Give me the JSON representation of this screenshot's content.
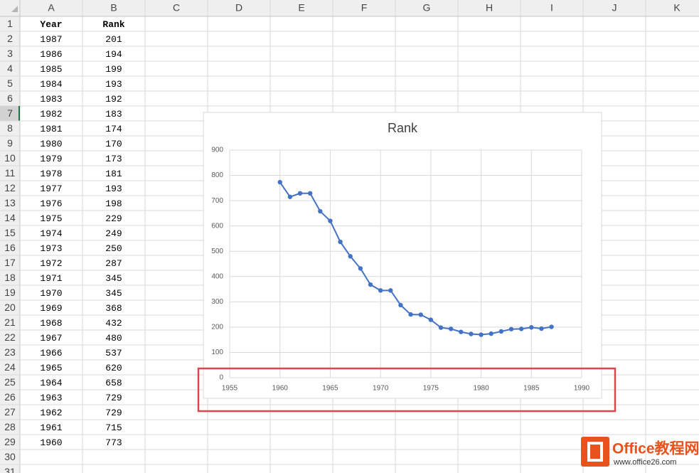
{
  "sheet": {
    "column_letters": [
      "A",
      "B",
      "C",
      "D",
      "E",
      "F",
      "G",
      "H",
      "I",
      "J",
      "K"
    ],
    "row_numbers": [
      1,
      2,
      3,
      4,
      5,
      6,
      7,
      8,
      9,
      10,
      11,
      12,
      13,
      14,
      15,
      16,
      17,
      18,
      19,
      20,
      21,
      22,
      23,
      24,
      25,
      26,
      27,
      28,
      29,
      30,
      31
    ],
    "headers": [
      "Year",
      "Rank"
    ],
    "year": [
      1987,
      1986,
      1985,
      1984,
      1983,
      1982,
      1981,
      1980,
      1979,
      1978,
      1977,
      1976,
      1975,
      1974,
      1973,
      1972,
      1971,
      1970,
      1969,
      1968,
      1967,
      1966,
      1965,
      1964,
      1963,
      1962,
      1961,
      1960
    ],
    "rank": [
      201,
      194,
      199,
      193,
      192,
      183,
      174,
      170,
      173,
      181,
      193,
      198,
      229,
      249,
      250,
      287,
      345,
      345,
      368,
      432,
      480,
      537,
      620,
      658,
      729,
      729,
      715,
      773
    ]
  },
  "chart": {
    "type": "line",
    "title": "Rank",
    "color": "#4472c4",
    "xlim": [
      1955,
      1990
    ],
    "xticks": [
      1955,
      1960,
      1965,
      1970,
      1975,
      1980,
      1985,
      1990
    ],
    "ylim": [
      0,
      900
    ],
    "yticks": [
      0,
      100,
      200,
      300,
      400,
      500,
      600,
      700,
      800,
      900
    ],
    "grid": true
  },
  "watermark": {
    "brand": "Office教程网",
    "url": "www.office26.com"
  }
}
